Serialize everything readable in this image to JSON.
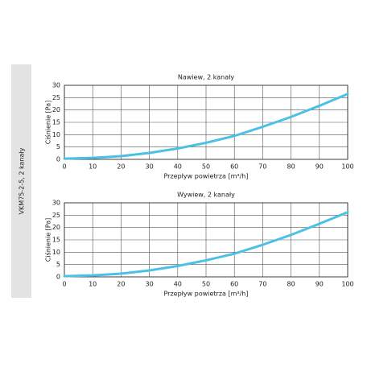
{
  "side_label": "VKM75-2-5, 2 kanały",
  "chart_data": [
    {
      "type": "line",
      "title": "Nawiew, 2 kanały",
      "xlabel": "Przepływ powietrza [m³/h]",
      "ylabel": "Ciśnienie [Pa]",
      "x": [
        0,
        10,
        20,
        30,
        40,
        50,
        60,
        70,
        80,
        90,
        100
      ],
      "series": [
        {
          "name": "Nawiew",
          "color": "#4cc0e6",
          "values": [
            0.3,
            0.6,
            1.3,
            2.6,
            4.4,
            6.7,
            9.5,
            13.2,
            17.2,
            21.7,
            26.5
          ]
        }
      ],
      "xlim": [
        0,
        100
      ],
      "xticks": [
        0,
        10,
        20,
        30,
        40,
        50,
        60,
        70,
        80,
        90,
        100
      ],
      "ylim": [
        0,
        30
      ],
      "yticks": [
        0,
        5,
        10,
        15,
        20,
        25,
        30
      ],
      "grid": true
    },
    {
      "type": "line",
      "title": "Wywiew, 2 kanały",
      "xlabel": "Przepływ powietrza [m³/h]",
      "ylabel": "Ciśnienie [Pa]",
      "x": [
        0,
        10,
        20,
        30,
        40,
        50,
        60,
        70,
        80,
        90,
        100
      ],
      "series": [
        {
          "name": "Wywiew",
          "color": "#4cc0e6",
          "values": [
            0.3,
            0.6,
            1.3,
            2.6,
            4.4,
            6.7,
            9.4,
            13.0,
            17.0,
            21.5,
            26.2
          ]
        }
      ],
      "xlim": [
        0,
        100
      ],
      "xticks": [
        0,
        10,
        20,
        30,
        40,
        50,
        60,
        70,
        80,
        90,
        100
      ],
      "ylim": [
        0,
        30
      ],
      "yticks": [
        0,
        5,
        10,
        15,
        20,
        25,
        30
      ],
      "grid": true
    }
  ]
}
